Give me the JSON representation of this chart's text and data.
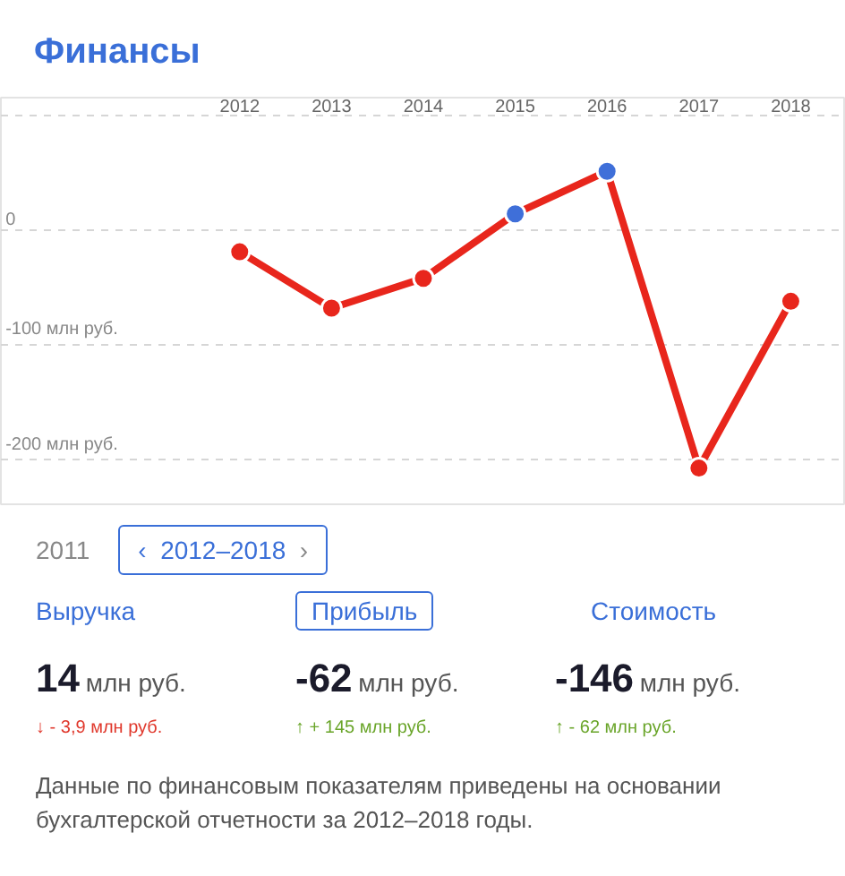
{
  "chart_data": {
    "type": "line",
    "title": "Финансы",
    "categories": [
      "2012",
      "2013",
      "2014",
      "2015",
      "2016",
      "2017",
      "2018"
    ],
    "series": [
      {
        "color": "#e8261c",
        "colors": [
          "#e8261c",
          "#e8261c",
          "#e8261c",
          "#3f6fd9",
          "#3f6fd9",
          "#e8261c",
          "#e8261c"
        ],
        "values": [
          -19,
          -68,
          -42,
          14,
          51,
          -207,
          -62
        ]
      }
    ],
    "ylim": [
      -240,
      115
    ],
    "yticks": [
      {
        "value": 100,
        "label": null
      },
      0,
      {
        "value": -100,
        "label": "-100 млн руб."
      },
      {
        "value": -200,
        "label": "-200 млн руб."
      }
    ],
    "grid": "y",
    "marker": "circle",
    "line_style": "solid",
    "annotations": [
      "2011",
      "‹",
      "2012–2018",
      "›",
      "Выручка",
      "Прибыль",
      "Стоимость",
      "14",
      "-62",
      "-146",
      "млн руб.",
      "млн руб.",
      "млн руб.",
      "↓ - 3,9 млн руб.",
      "↑ + 145 млн руб.",
      "↑ - 62 млн руб.",
      "Данные по финансовым показателям приведены на основании бухгалтерской отчетности за 2012–2018 годы."
    ]
  }
}
